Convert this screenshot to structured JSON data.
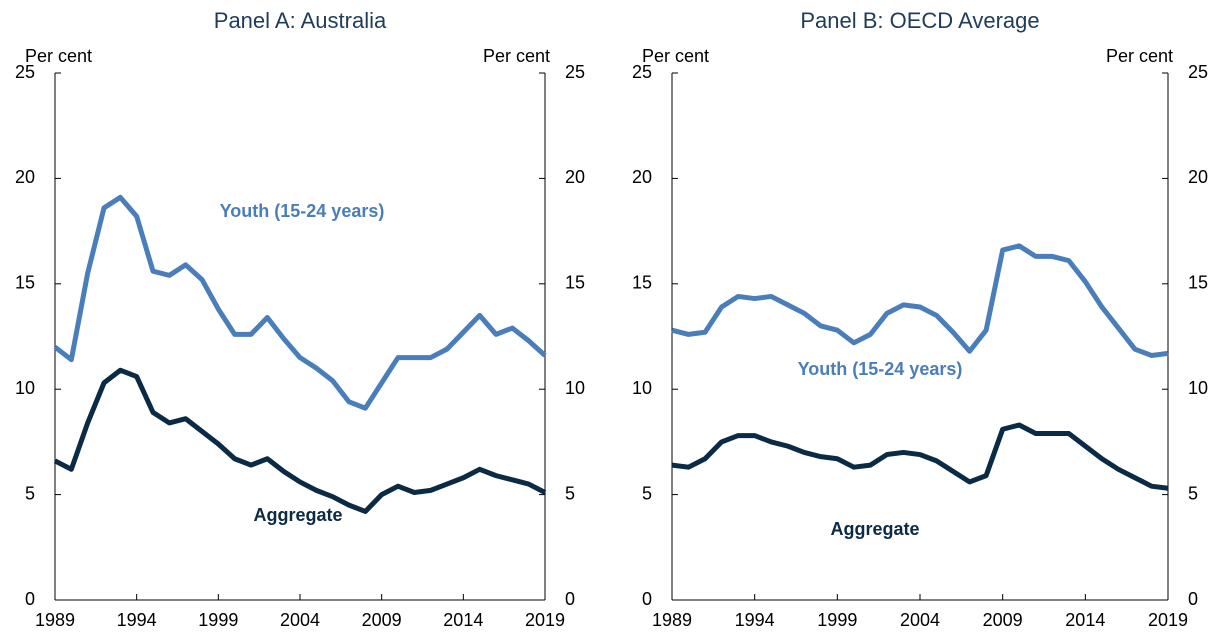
{
  "chart_data": [
    {
      "type": "line",
      "title": "Panel A: Australia",
      "y_label": "Per cent",
      "y2_label": "Per cent",
      "x": [
        1989,
        1990,
        1991,
        1992,
        1993,
        1994,
        1995,
        1996,
        1997,
        1998,
        1999,
        2000,
        2001,
        2002,
        2003,
        2004,
        2005,
        2006,
        2007,
        2008,
        2009,
        2010,
        2011,
        2012,
        2013,
        2014,
        2015,
        2016,
        2017,
        2018,
        2019
      ],
      "xlim": [
        1989,
        2019
      ],
      "xticks": [
        1989,
        1994,
        1999,
        2004,
        2009,
        2014,
        2019
      ],
      "ylim": [
        0,
        25
      ],
      "yticks": [
        0,
        5,
        10,
        15,
        20,
        25
      ],
      "y2lim": [
        0,
        25
      ],
      "y2ticks": [
        0,
        5,
        10,
        15,
        20,
        25
      ],
      "series": [
        {
          "name": "Youth (15-24 years)",
          "color": "#4a7ebb",
          "values": [
            12.0,
            11.4,
            15.5,
            18.6,
            19.1,
            18.2,
            15.6,
            15.4,
            15.9,
            15.2,
            13.8,
            12.6,
            12.6,
            13.4,
            12.4,
            11.5,
            11.0,
            10.4,
            9.4,
            9.1,
            10.3,
            11.5,
            11.5,
            11.5,
            11.9,
            12.7,
            13.5,
            12.6,
            12.9,
            12.3,
            11.6
          ]
        },
        {
          "name": "Aggregate",
          "color": "#0a2a45",
          "values": [
            6.6,
            6.2,
            8.4,
            10.3,
            10.9,
            10.6,
            8.9,
            8.4,
            8.6,
            8.0,
            7.4,
            6.7,
            6.4,
            6.7,
            6.1,
            5.6,
            5.2,
            4.9,
            4.5,
            4.2,
            5.0,
            5.4,
            5.1,
            5.2,
            5.5,
            5.8,
            6.2,
            5.9,
            5.7,
            5.5,
            5.1
          ]
        }
      ]
    },
    {
      "type": "line",
      "title": "Panel B: OECD Average",
      "y_label": "Per cent",
      "y2_label": "Per cent",
      "x": [
        1989,
        1990,
        1991,
        1992,
        1993,
        1994,
        1995,
        1996,
        1997,
        1998,
        1999,
        2000,
        2001,
        2002,
        2003,
        2004,
        2005,
        2006,
        2007,
        2008,
        2009,
        2010,
        2011,
        2012,
        2013,
        2014,
        2015,
        2016,
        2017,
        2018,
        2019
      ],
      "xlim": [
        1989,
        2019
      ],
      "xticks": [
        1989,
        1994,
        1999,
        2004,
        2009,
        2014,
        2019
      ],
      "ylim": [
        0,
        25
      ],
      "yticks": [
        0,
        5,
        10,
        15,
        20,
        25
      ],
      "y2lim": [
        0,
        25
      ],
      "y2ticks": [
        0,
        5,
        10,
        15,
        20,
        25
      ],
      "series": [
        {
          "name": "Youth (15-24 years)",
          "color": "#4a7ebb",
          "values": [
            12.8,
            12.6,
            12.7,
            13.9,
            14.4,
            14.3,
            14.4,
            14.0,
            13.6,
            13.0,
            12.8,
            12.2,
            12.6,
            13.6,
            14.0,
            13.9,
            13.5,
            12.7,
            11.8,
            12.8,
            16.6,
            16.8,
            16.3,
            16.3,
            16.1,
            15.1,
            13.9,
            12.9,
            11.9,
            11.6,
            11.7
          ]
        },
        {
          "name": "Aggregate",
          "color": "#0a2a45",
          "values": [
            6.4,
            6.3,
            6.7,
            7.5,
            7.8,
            7.8,
            7.5,
            7.3,
            7.0,
            6.8,
            6.7,
            6.3,
            6.4,
            6.9,
            7.0,
            6.9,
            6.6,
            6.1,
            5.6,
            5.9,
            8.1,
            8.3,
            7.9,
            7.9,
            7.9,
            7.3,
            6.7,
            6.2,
            5.8,
            5.4,
            5.3
          ]
        }
      ]
    }
  ]
}
